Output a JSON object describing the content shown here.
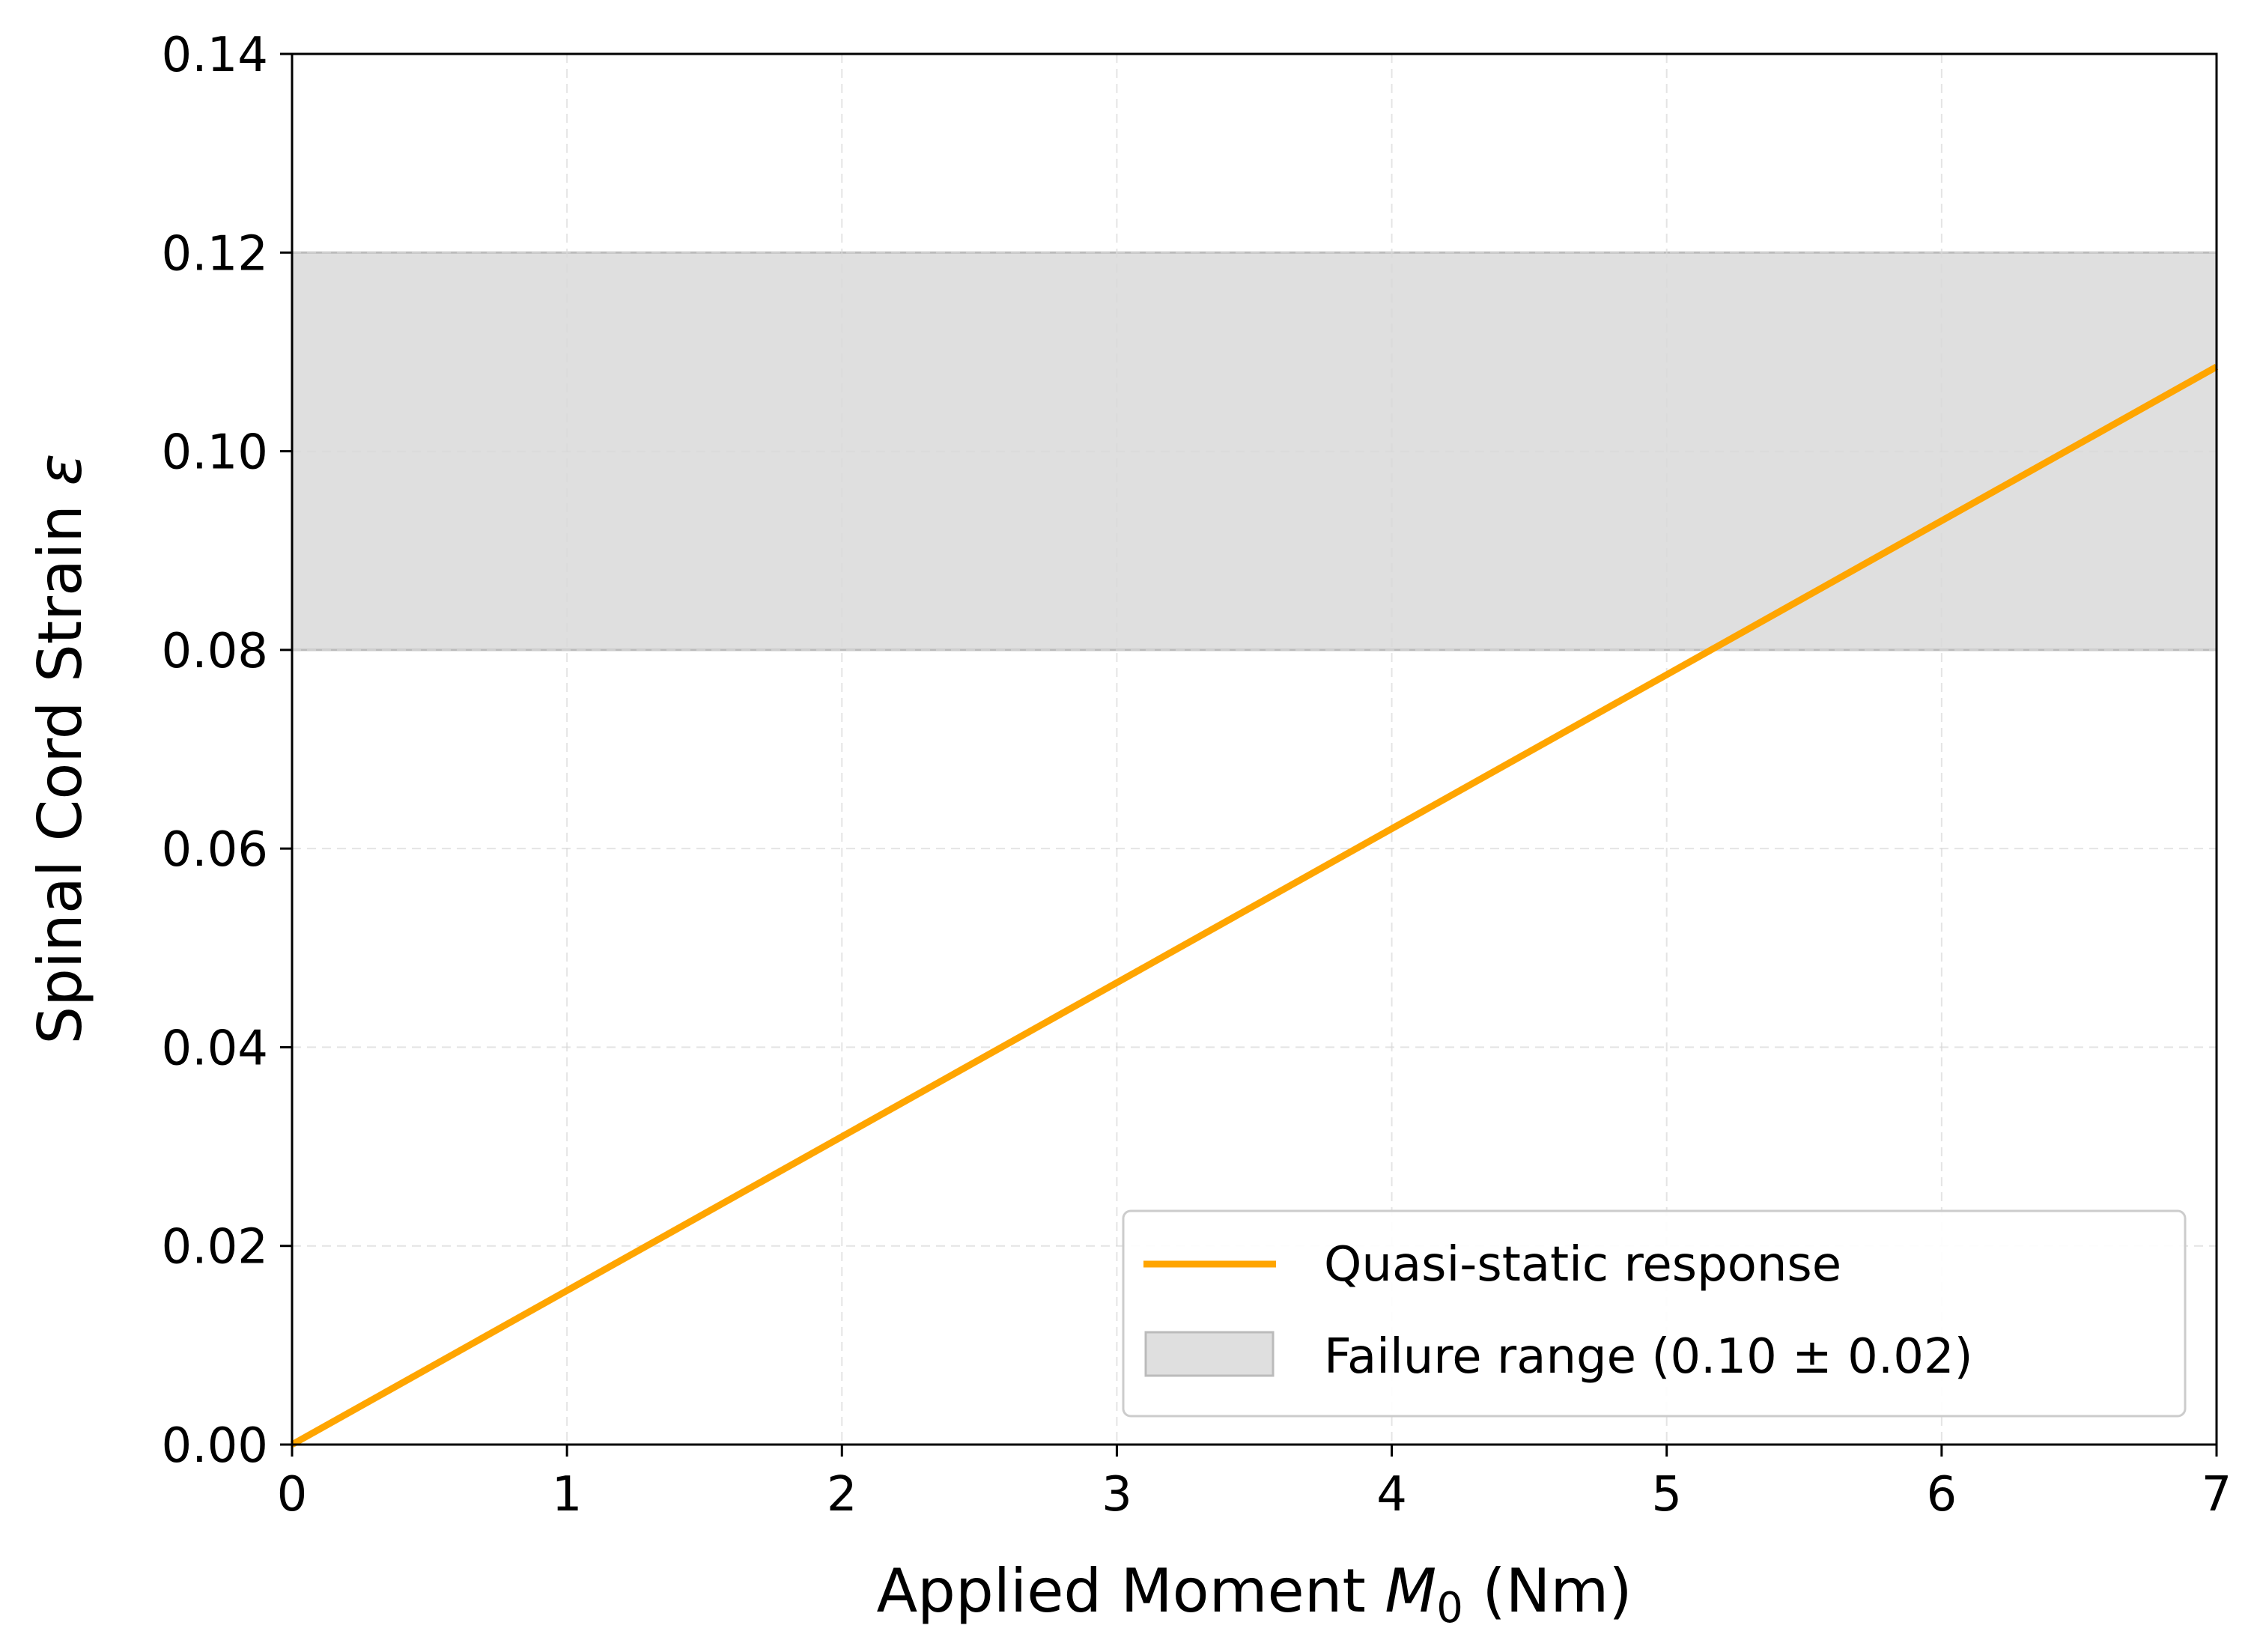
{
  "chart_data": {
    "type": "line",
    "title": "",
    "xlabel": {
      "pre": "Applied Moment ",
      "sym": "M",
      "sub": "0",
      "post": " (Nm)"
    },
    "ylabel": {
      "pre": "Spinal Cord Strain ",
      "sym": "ε"
    },
    "xlim": [
      0,
      7
    ],
    "ylim": [
      0,
      0.14
    ],
    "xticks": [
      0,
      1,
      2,
      3,
      4,
      5,
      6,
      7
    ],
    "xtick_labels": [
      "0",
      "1",
      "2",
      "3",
      "4",
      "5",
      "6",
      "7"
    ],
    "yticks": [
      0,
      0.02,
      0.04,
      0.06,
      0.08,
      0.1,
      0.12,
      0.14
    ],
    "ytick_labels": [
      "0.00",
      "0.02",
      "0.04",
      "0.06",
      "0.08",
      "0.10",
      "0.12",
      "0.14"
    ],
    "grid": true,
    "legend_position": "lower-right",
    "series": [
      {
        "name": "Quasi-static response",
        "color": "#FFA500",
        "x": [
          0,
          7
        ],
        "y": [
          0,
          0.1085
        ]
      }
    ],
    "bands": [
      {
        "name": "Failure range (0.10 ± 0.02)",
        "ymin": 0.08,
        "ymax": 0.12,
        "color": "#DFDFDF",
        "edge_color": "#BBBBBB"
      }
    ]
  }
}
